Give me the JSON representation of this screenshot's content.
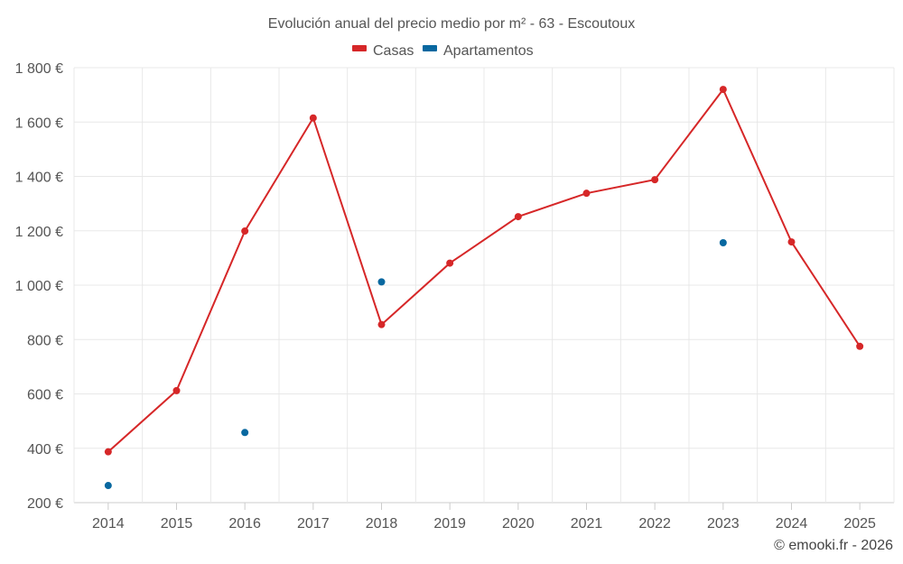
{
  "chart_data": {
    "type": "line",
    "title": "Evolución anual del precio medio por m² - 63 - Escoutoux",
    "categories": [
      "2014",
      "2015",
      "2016",
      "2017",
      "2018",
      "2019",
      "2020",
      "2021",
      "2022",
      "2023",
      "2024",
      "2025"
    ],
    "series": [
      {
        "name": "Casas",
        "color": "#d62728",
        "values": [
          387,
          612,
          1199,
          1615,
          855,
          1081,
          1252,
          1338,
          1388,
          1720,
          1159,
          775
        ]
      },
      {
        "name": "Apartamentos",
        "color": "#0868a0",
        "values": [
          263,
          null,
          458,
          null,
          1012,
          null,
          null,
          null,
          null,
          1156,
          null,
          null
        ]
      }
    ],
    "ylim": [
      200,
      1800
    ],
    "yticks": [
      200,
      400,
      600,
      800,
      1000,
      1200,
      1400,
      1600,
      1800
    ],
    "ytick_labels": [
      "200 €",
      "400 €",
      "600 €",
      "800 €",
      "1 000 €",
      "1 200 €",
      "1 400 €",
      "1 600 €",
      "1 800 €"
    ],
    "xlabel": "",
    "ylabel": "",
    "grid": true,
    "legend_position": "top-center"
  },
  "credit": "© emooki.fr - 2026"
}
